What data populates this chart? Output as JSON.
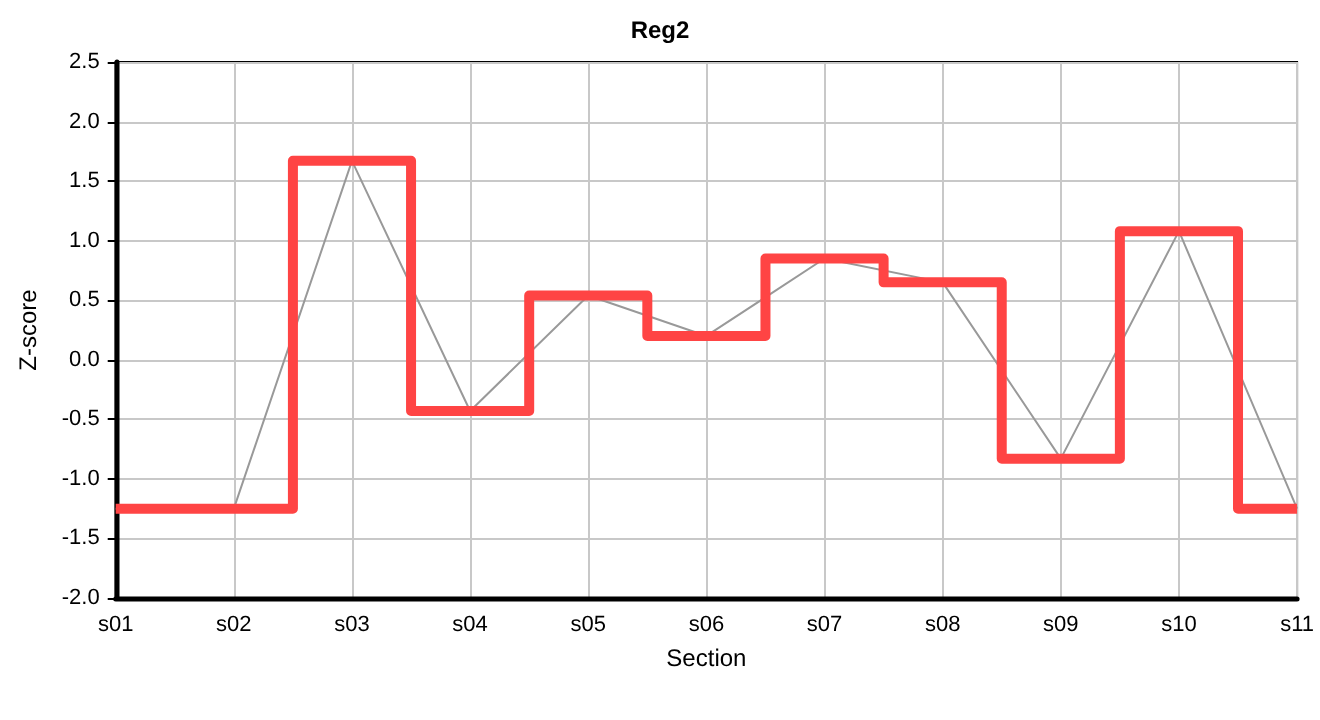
{
  "chart_data": {
    "type": "step",
    "title": "Reg2",
    "xlabel": "Section",
    "ylabel": "Z-score",
    "categories": [
      "s01",
      "s02",
      "s03",
      "s04",
      "s05",
      "s06",
      "s07",
      "s08",
      "s09",
      "s10",
      "s11"
    ],
    "series": [
      {
        "type": "line",
        "color": "#999999",
        "values": [
          -1.25,
          -1.25,
          1.67,
          -0.43,
          0.54,
          0.2,
          0.85,
          0.65,
          -0.83,
          1.08,
          -1.25
        ]
      },
      {
        "color": "#ff4444",
        "values": [
          -1.25,
          -1.25,
          1.67,
          -0.43,
          0.54,
          0.2,
          0.85,
          0.65,
          -0.83,
          1.08,
          -1.25
        ]
      }
    ],
    "ylim": [
      -2,
      2.5
    ],
    "yticks": [
      {
        "value": -2,
        "label": "-2.0"
      },
      -1.5,
      {
        "value": -1,
        "label": "-1.0"
      },
      -0.5,
      {
        "value": 0,
        "label": "0.0"
      },
      0.5,
      {
        "value": 1,
        "label": "1.0"
      },
      1.5,
      {
        "value": 2,
        "label": "2.0"
      },
      2.5
    ],
    "grid": true,
    "marker": "none"
  }
}
